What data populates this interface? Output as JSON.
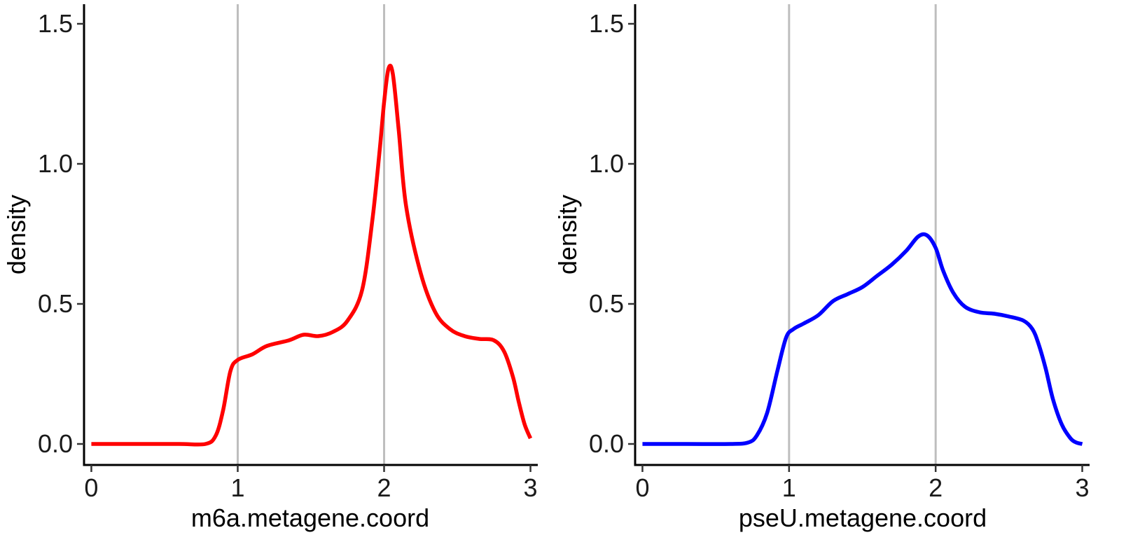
{
  "chart_data": [
    {
      "type": "line",
      "title": "",
      "xlabel": "m6a.metagene.coord",
      "ylabel": "density",
      "xlim": [
        -0.05,
        3.05
      ],
      "ylim": [
        -0.075,
        1.57
      ],
      "x_ticks": [
        "0",
        "1",
        "2",
        "3"
      ],
      "y_ticks": [
        "0.0",
        "0.5",
        "1.0",
        "1.5"
      ],
      "vlines": [
        1,
        2
      ],
      "grid": false,
      "legend": "none",
      "series": [
        {
          "color": "#ff0000",
          "x": [
            0.0,
            0.3,
            0.6,
            0.78,
            0.85,
            0.9,
            0.95,
            1.0,
            1.1,
            1.2,
            1.35,
            1.45,
            1.55,
            1.65,
            1.75,
            1.85,
            1.92,
            1.97,
            2.0,
            2.03,
            2.06,
            2.1,
            2.15,
            2.25,
            2.35,
            2.45,
            2.55,
            2.65,
            2.75,
            2.82,
            2.88,
            2.92,
            2.96,
            3.0
          ],
          "y": [
            0.0,
            0.0,
            0.0,
            0.0,
            0.03,
            0.12,
            0.26,
            0.3,
            0.32,
            0.35,
            0.37,
            0.39,
            0.385,
            0.4,
            0.44,
            0.55,
            0.8,
            1.05,
            1.22,
            1.34,
            1.32,
            1.12,
            0.85,
            0.61,
            0.47,
            0.41,
            0.385,
            0.375,
            0.37,
            0.33,
            0.24,
            0.15,
            0.07,
            0.02
          ]
        }
      ]
    },
    {
      "type": "line",
      "title": "",
      "xlabel": "pseU.metagene.coord",
      "ylabel": "density",
      "xlim": [
        -0.05,
        3.05
      ],
      "ylim": [
        -0.075,
        1.57
      ],
      "x_ticks": [
        "0",
        "1",
        "2",
        "3"
      ],
      "y_ticks": [
        "0.0",
        "0.5",
        "1.0",
        "1.5"
      ],
      "vlines": [
        1,
        2
      ],
      "grid": false,
      "legend": "none",
      "series": [
        {
          "color": "#0000ff",
          "x": [
            0.0,
            0.3,
            0.6,
            0.72,
            0.78,
            0.85,
            0.92,
            0.98,
            1.03,
            1.1,
            1.2,
            1.3,
            1.4,
            1.5,
            1.6,
            1.7,
            1.8,
            1.88,
            1.94,
            2.0,
            2.05,
            2.12,
            2.2,
            2.3,
            2.4,
            2.5,
            2.6,
            2.66,
            2.7,
            2.75,
            2.8,
            2.86,
            2.92,
            2.96,
            3.0
          ],
          "y": [
            0.0,
            0.0,
            0.0,
            0.005,
            0.03,
            0.11,
            0.26,
            0.38,
            0.41,
            0.43,
            0.46,
            0.51,
            0.535,
            0.56,
            0.6,
            0.64,
            0.69,
            0.74,
            0.745,
            0.7,
            0.62,
            0.54,
            0.49,
            0.47,
            0.465,
            0.455,
            0.44,
            0.41,
            0.36,
            0.27,
            0.16,
            0.07,
            0.02,
            0.005,
            0.0
          ]
        }
      ]
    }
  ]
}
